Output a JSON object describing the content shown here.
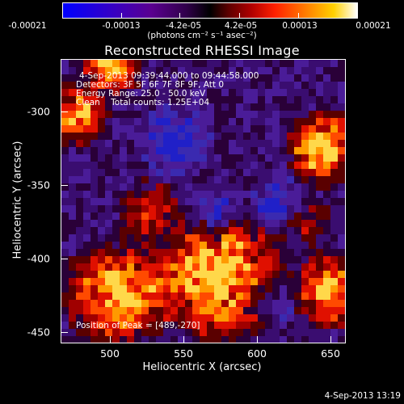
{
  "colorbar": {
    "tick_labels": [
      "-0.00021",
      "-0.00013",
      "-4.2e-05",
      "4.2e-05",
      "0.00013",
      "0.00021"
    ],
    "unit": "(photons cm⁻² s⁻¹ asec⁻²)"
  },
  "title": "Reconstructed RHESSI Image",
  "info": {
    "line1": "4-Sep-2013 09:39:44.000 to 09:44:58.000",
    "line2": "Detectors: 3F 5F 6F 7F 8F 9F, Att 0",
    "line3": "Energy Range: 25.0 - 50.0 keV",
    "line4": "Clean    Total counts: 1.25E+04"
  },
  "peak": "Position of Peak = [489,-270]",
  "axes": {
    "xlabel": "Heliocentric X (arcsec)",
    "ylabel": "Heliocentric Y (arcsec)",
    "xticks": [
      "500",
      "550",
      "600",
      "650"
    ],
    "yticks": [
      "-300",
      "-350",
      "-400",
      "-450"
    ]
  },
  "timestamp": "4-Sep-2013 13:19",
  "colors": {
    "background": "#000000",
    "frame": "#ffffff",
    "image_base": "#3a0d70"
  }
}
